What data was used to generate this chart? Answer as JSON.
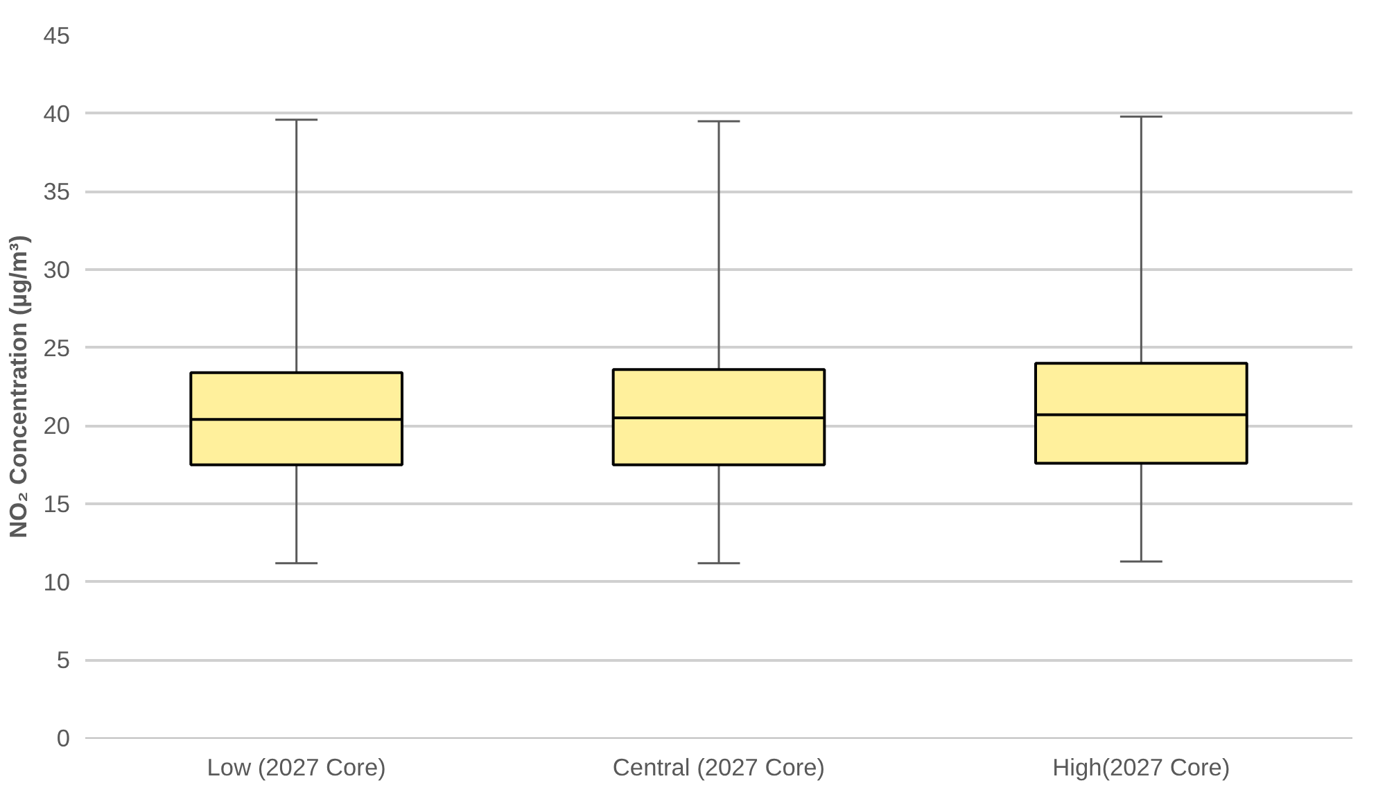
{
  "chart_data": {
    "type": "box",
    "ylabel": "NO₂ Concentration (µg/m³)",
    "categories": [
      "Low (2027 Core)",
      "Central (2027 Core)",
      "High(2027 Core)"
    ],
    "ylim": [
      0,
      45
    ],
    "yticks": [
      0,
      5,
      10,
      15,
      20,
      25,
      30,
      35,
      40,
      45
    ],
    "grid": "y",
    "series": [
      {
        "color": "#fff09c",
        "boxes": [
          {
            "low": 11.2,
            "q1": 17.5,
            "median": 20.4,
            "q3": 23.4,
            "high": 39.6
          },
          {
            "low": 11.2,
            "q1": 17.5,
            "median": 20.5,
            "q3": 23.6,
            "high": 39.5
          },
          {
            "low": 11.3,
            "q1": 17.6,
            "median": 20.7,
            "q3": 24.0,
            "high": 39.8
          }
        ]
      }
    ]
  }
}
